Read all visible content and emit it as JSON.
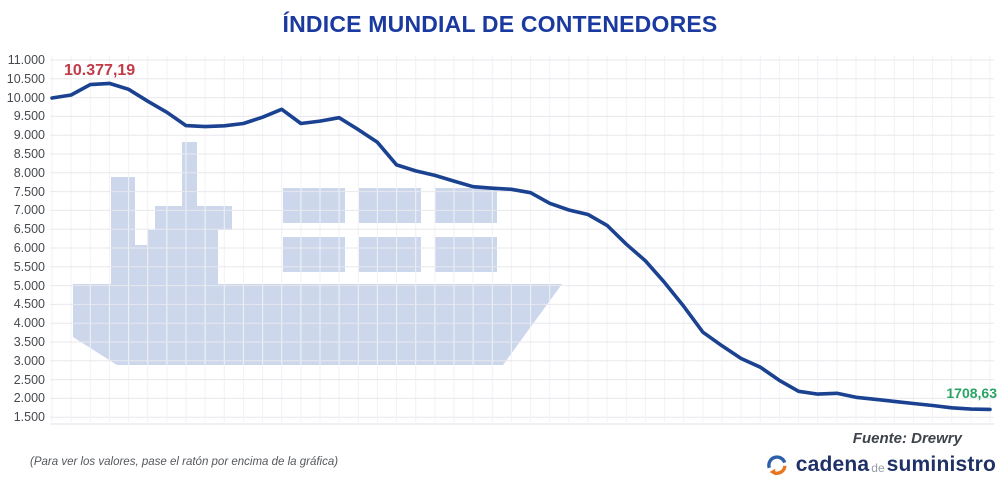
{
  "title": "ÍNDICE MUNDIAL DE CONTENEDORES",
  "footnote": "(Para ver los valores, pase el ratón por encima de la gráfica)",
  "source": "Fuente: Drewry",
  "logo": {
    "word1": "cadena",
    "word2": "de",
    "word3": "suministro"
  },
  "labels": {
    "peak": "10.377,19",
    "last": "1708,63"
  },
  "icons": {
    "logo": "circular-arrows-icon",
    "watermark": "container-ship-icon"
  },
  "colors": {
    "title": "#1a3aa0",
    "line": "#1b4191",
    "peak_label": "#c23a47",
    "last_label": "#2aa465",
    "watermark": "#ccd7ec",
    "grid_h": "#e8e8ee",
    "grid_v": "#f2f2f7",
    "axis_line": "#e2e2e9",
    "axis_text": "#46494f"
  },
  "chart_data": {
    "type": "line",
    "title": "ÍNDICE MUNDIAL DE CONTENEDORES",
    "ylabel": "",
    "xlabel": "",
    "x_labels_visible": false,
    "grid": true,
    "legend": "none",
    "ylim": [
      1500,
      11000
    ],
    "y_tick_step": 500,
    "y_ticks": [
      "11.000",
      "10.500",
      "10.000",
      "9.500",
      "9.000",
      "8.500",
      "8.000",
      "7.500",
      "7.000",
      "6.500",
      "6.000",
      "5.500",
      "5.000",
      "4.500",
      "4.000",
      "3.500",
      "3.000",
      "2.500",
      "2.000",
      "1.500"
    ],
    "annotations": {
      "max_value": 10377.19,
      "max_label": "10.377,19",
      "last_value": 1708.63,
      "last_label": "1708,63"
    },
    "values": [
      9990,
      10070,
      10345,
      10377.19,
      10220,
      9905,
      9610,
      9255,
      9230,
      9250,
      9310,
      9480,
      9690,
      9310,
      9375,
      9465,
      9150,
      8810,
      8210,
      8050,
      7930,
      7780,
      7630,
      7590,
      7560,
      7470,
      7190,
      7010,
      6890,
      6600,
      6100,
      5660,
      5080,
      4450,
      3760,
      3400,
      3060,
      2830,
      2480,
      2190,
      2115,
      2135,
      2030,
      1975,
      1920,
      1865,
      1810,
      1750,
      1716,
      1708.63
    ]
  }
}
